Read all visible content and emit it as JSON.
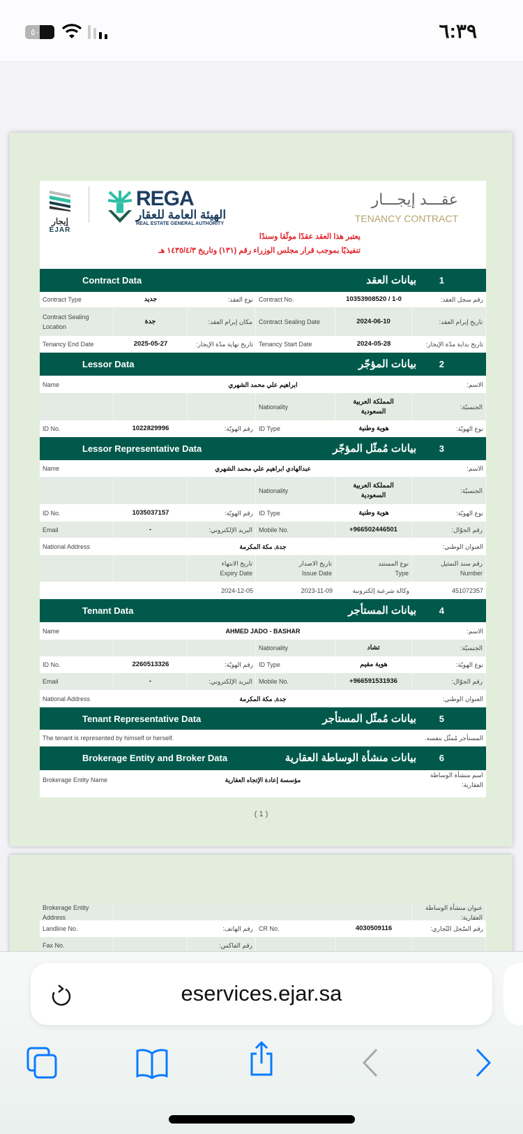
{
  "status_bar": {
    "time": "٦:٣٩",
    "battery_level": "٥٠"
  },
  "header": {
    "ejar_logo_ar": "إيجار",
    "ejar_logo_en": "EJAR",
    "rega_logo": "REGA",
    "rega_ar": "الهيئة العامة للعقار",
    "rega_en": "REAL ESTATE GENERAL AUTHORITY",
    "title_ar": "عقـــد إيجـــار",
    "title_en": "TENANCY CONTRACT",
    "notice_lines": [
      "يعتبر هذا العقد عقدًا موثّقا وسندًا",
      "تنفيذيًا بموجب قرار مجلس الوزراء رقم (١٣١) وتاريخ ١٤٣٥/٤/٣ هـ"
    ]
  },
  "colors": {
    "section_header": "#00594b",
    "notice": "#e0242a",
    "title_gold": "#b7a46c",
    "page_bg": "#e2eedb",
    "row_shade": "#e3ebe4",
    "toolbar_blue": "#0a7aff"
  },
  "sections": [
    {
      "number": "1",
      "title_en": "Contract Data",
      "title_ar": "بيانات العقد",
      "rows": [
        {
          "type": "pair",
          "cells": [
            "Contract Type",
            "جديد",
            "نوع العقد:",
            "Contract No.",
            "10353908520 / 1-0",
            "رقم سجل العقد:"
          ]
        },
        {
          "type": "pair",
          "cells": [
            "Contract Sealing Location",
            "جدة",
            "مكان إبرام العقد:",
            "Contract Sealing Date",
            "2024-06-10",
            "تاريخ إبرام العقد:"
          ]
        },
        {
          "type": "pair",
          "cells": [
            "Tenancy End Date",
            "2025-05-27",
            "تاريخ نهاية مدّة الإيجار:",
            "Tenancy Start Date",
            "2024-05-28",
            "تاريخ بداية مدّة الإيجار:"
          ]
        }
      ]
    },
    {
      "number": "2",
      "title_en": "Lessor Data",
      "title_ar": "بيانات المؤجّر",
      "rows": [
        {
          "type": "full",
          "cells": [
            "Name",
            "ابراهيم علي محمد الشهري",
            "الاسم:"
          ]
        },
        {
          "type": "pair",
          "cells": [
            "",
            "",
            "",
            "Nationality",
            "المملكة العربية السعودية",
            "الجنسيّة:"
          ]
        },
        {
          "type": "pair",
          "cells": [
            "ID No.",
            "1022829996",
            "رقم الهويّة:",
            "ID Type",
            "هوية وطنية",
            "نوع الهويّة:"
          ]
        }
      ]
    },
    {
      "number": "3",
      "title_en": "Lessor Representative Data",
      "title_ar": "بيانات مُمثّل المؤجّر",
      "rows": [
        {
          "type": "full",
          "cells": [
            "Name",
            "عبدالهادي ابراهيم علي محمد الشهري",
            "الاسم:"
          ]
        },
        {
          "type": "pair",
          "cells": [
            "",
            "",
            "",
            "Nationality",
            "المملكة العربية السعودية",
            "الجنسيّة:"
          ]
        },
        {
          "type": "pair",
          "cells": [
            "ID No.",
            "1035037157",
            "رقم الهويّة:",
            "ID Type",
            "هوية وطنية",
            "نوع الهويّة:"
          ]
        },
        {
          "type": "pair",
          "cells": [
            "Email",
            "-",
            "البريد الإلكتروني:",
            "Mobile No.",
            "+966502446501",
            "رقم الجوّال:"
          ]
        },
        {
          "type": "full",
          "cells": [
            "National Address",
            "جدة, مكة المكرمة",
            "العنوان الوطني:"
          ]
        },
        {
          "type": "docs",
          "cells": [
            [
              "",
              ""
            ],
            [
              "",
              ""
            ],
            [
              "تاريخ الانتهاء",
              "Expiry Date"
            ],
            [
              "تاريخ الاصدار",
              "Issue Date"
            ],
            [
              "نوع المستند",
              "Type"
            ],
            [
              "رقم سند التمثيل",
              "Number"
            ]
          ]
        },
        {
          "type": "docs",
          "cells": [
            [
              "",
              ""
            ],
            [
              "",
              ""
            ],
            [
              "2024-12-05",
              ""
            ],
            [
              "2023-11-09",
              ""
            ],
            [
              "وكالة شرعية إلكترونية",
              ""
            ],
            [
              "451072357",
              ""
            ]
          ]
        }
      ]
    },
    {
      "number": "4",
      "title_en": "Tenant Data",
      "title_ar": "بيانات المستأجر",
      "rows": [
        {
          "type": "full",
          "cells": [
            "Name",
            "AHMED JADO - BASHAR",
            "الاسم:"
          ]
        },
        {
          "type": "pair",
          "cells": [
            "",
            "",
            "",
            "Nationality",
            "تشاد",
            "الجنسيّة:"
          ]
        },
        {
          "type": "pair",
          "cells": [
            "ID No.",
            "2260513326",
            "رقم الهويّة:",
            "ID Type",
            "هوية مقيم",
            "نوع الهويّة:"
          ]
        },
        {
          "type": "pair",
          "cells": [
            "Email",
            "-",
            "البريد الإلكتروني:",
            "Mobile No.",
            "+966591531936",
            "رقم الجوّال:"
          ]
        },
        {
          "type": "full",
          "cells": [
            "National Address",
            "جدة, مكة المكرمة",
            "العنوان الوطني:"
          ]
        }
      ]
    },
    {
      "number": "5",
      "title_en": "Tenant Representative Data",
      "title_ar": "بيانات مُمثّل المستأجر",
      "rows": [
        {
          "type": "note",
          "cells": [
            "The tenant is represented by himself or herself.",
            "المستأجر مُمثّل بنفسه."
          ]
        }
      ]
    },
    {
      "number": "6",
      "title_en": "Brokerage Entity and Broker Data",
      "title_ar": "بيانات منشأة الوساطة العقارية",
      "rows": [
        {
          "type": "full",
          "cells": [
            "Brokerage Entity Name",
            "مؤسسة إعادة الإتجاه العقارية",
            "اسم منشأة الوساطة العقارية:"
          ]
        }
      ]
    }
  ],
  "page_number": "( 1 )",
  "page2_rows": [
    {
      "type": "full",
      "cells": [
        "Brokerage Entity Address",
        "",
        "عنوان منشأة الوساطة العقارية:"
      ]
    },
    {
      "type": "pair",
      "cells": [
        "Landline No.",
        "",
        "رقم الهاتف:",
        "CR No.",
        "4030509116",
        "رقم السّجل التّجاري:"
      ]
    },
    {
      "type": "pair",
      "cells": [
        "Fax No.",
        "",
        "رقم الفاكس:",
        "",
        "",
        ""
      ]
    }
  ],
  "browser": {
    "url": "eservices.ejar.sa"
  }
}
